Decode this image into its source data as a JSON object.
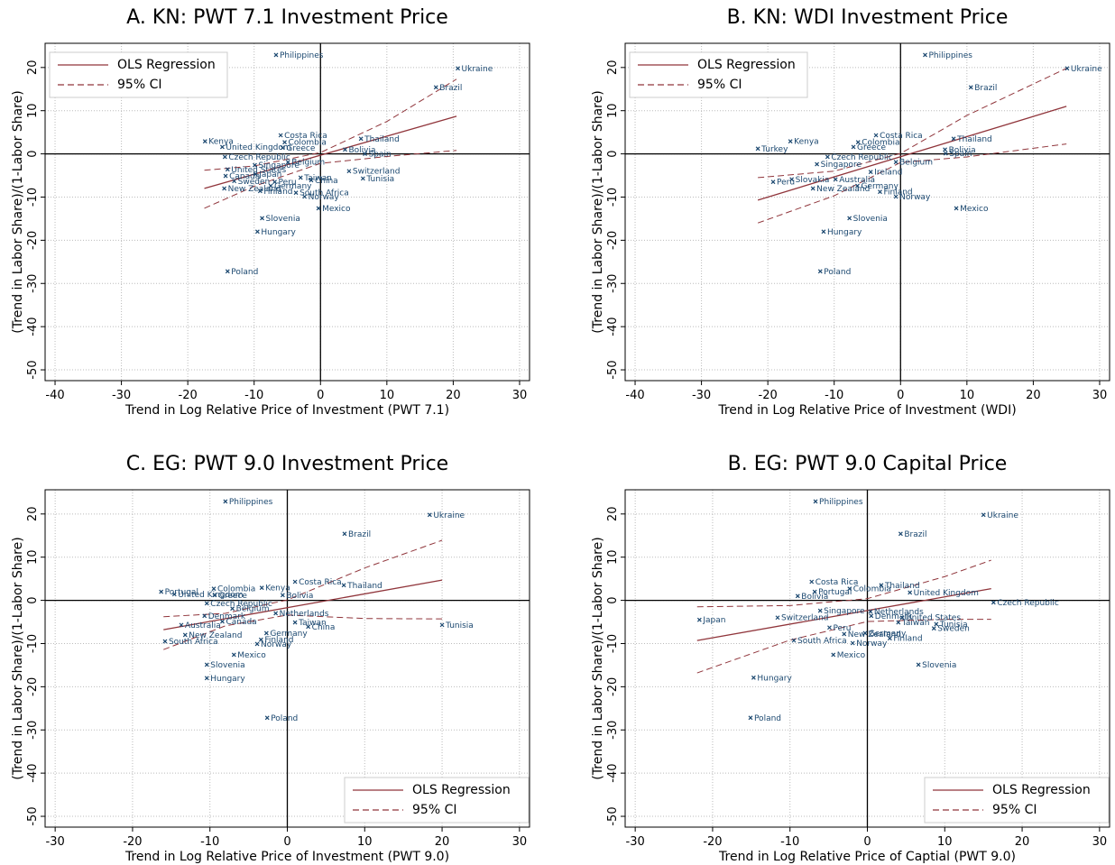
{
  "chart_data": [
    {
      "type": "scatter",
      "title": "A. KN: PWT 7.1 Investment Price",
      "x_label": "Trend in Log Relative Price of Investment (PWT 7.1)",
      "y_label": "(Trend in Labor Share)/(1-Labor Share)",
      "xlim": [
        -41.5,
        31.5
      ],
      "ylim": [
        -52.5,
        25.6
      ],
      "xticks": [
        -40,
        -30,
        -20,
        -10,
        0,
        10,
        20,
        30
      ],
      "yticks": [
        -50,
        -40,
        -30,
        -20,
        -10,
        0,
        10,
        20
      ],
      "grid": true,
      "legend": "top-left",
      "points": {
        "color": "#1a476f",
        "labels": [
          "Philippines",
          "Ukraine",
          "Brazil",
          "Costa Rica",
          "Colombia",
          "Kenya",
          "United Kingdom",
          "Greece",
          "Thailand",
          "Bolivia",
          "Spain",
          "Czech Republic",
          "Belgium",
          "Singapore",
          "United States",
          "Canada",
          "Japan",
          "Switzerland",
          "Tunisia",
          "Taiwan",
          "China",
          "Sweden",
          "Peru",
          "Germany",
          "New Zealand",
          "Finland",
          "South Africa",
          "Norway",
          "Mexico",
          "Slovenia",
          "Hungary",
          "Poland"
        ],
        "x": [
          -6.7,
          20.7,
          17.4,
          -6.0,
          -5.4,
          -17.4,
          -14.8,
          -5.7,
          6.1,
          3.7,
          6.7,
          -14.4,
          -4.9,
          -9.9,
          -14.0,
          -14.3,
          -9.8,
          4.3,
          6.4,
          -3.0,
          -1.4,
          -13.0,
          -6.9,
          -7.5,
          -14.5,
          -9.1,
          -3.7,
          -2.4,
          -0.3,
          -8.8,
          -9.5,
          -14.0
        ],
        "y": [
          22.9,
          19.8,
          15.4,
          4.3,
          2.7,
          2.9,
          1.6,
          1.4,
          3.5,
          1.0,
          0,
          -0.7,
          -1.9,
          -2.6,
          -3.6,
          -5.1,
          -4.7,
          -4.0,
          -5.7,
          -5.5,
          -6.1,
          -6.3,
          -6.5,
          -7.4,
          -8.0,
          -8.6,
          -9.0,
          -9.9,
          -12.6,
          -14.9,
          -18.0,
          -27.2
        ]
      },
      "series": [
        {
          "name": "OLS Regression",
          "color": "#90353b",
          "x": [
            -17.5,
            20.5
          ],
          "values": [
            -8,
            8.7
          ]
        },
        {
          "name": "95% CI",
          "color": "#90353b",
          "x": [
            -17.5,
            -10,
            0,
            10,
            20.5
          ],
          "upper": [
            -3.8,
            -2.8,
            0.3,
            7.5,
            17.3
          ],
          "lower": [
            -12.6,
            -7.5,
            -2.2,
            -0.6,
            0.8
          ]
        }
      ]
    },
    {
      "type": "scatter",
      "title": "B. KN: WDI Investment Price",
      "x_label": "Trend in Log Relative Price of Investment (WDI)",
      "y_label": "(Trend in Labor Share)/(1-Labor Share)",
      "xlim": [
        -41.5,
        31.5
      ],
      "ylim": [
        -52.5,
        25.6
      ],
      "xticks": [
        -40,
        -30,
        -20,
        -10,
        0,
        10,
        20,
        30
      ],
      "yticks": [
        -50,
        -40,
        -30,
        -20,
        -10,
        0,
        10,
        20
      ],
      "grid": true,
      "legend": "top-left",
      "points": {
        "color": "#1a476f",
        "labels": [
          "Philippines",
          "Ukraine",
          "Brazil",
          "Turkey",
          "Kenya",
          "Costa Rica",
          "Colombia",
          "Greece",
          "Thailand",
          "Bolivia",
          "Spain",
          "Czech Republic",
          "Belgium",
          "Singapore",
          "Peru",
          "Slovakia",
          "Australia",
          "Ireland",
          "Germany",
          "New Zealand",
          "Finland",
          "Norway",
          "Mexico",
          "Slovenia",
          "Hungary",
          "Poland"
        ],
        "x": [
          3.7,
          25.1,
          10.6,
          -21.5,
          -16.6,
          -3.7,
          -6.4,
          -7.1,
          8.0,
          6.7,
          6.8,
          -11.0,
          -0.7,
          -12.6,
          -19.2,
          -16.4,
          -9.8,
          -4.5,
          -6.5,
          -13.2,
          -3.1,
          -0.7,
          8.4,
          -7.7,
          -11.6,
          -12.1
        ],
        "y": [
          22.9,
          19.8,
          15.4,
          1.2,
          2.9,
          4.3,
          2.7,
          1.6,
          3.5,
          1.0,
          0.1,
          -0.7,
          -1.9,
          -2.4,
          -6.5,
          -5.9,
          -5.9,
          -4.2,
          -7.4,
          -8.0,
          -8.8,
          -9.9,
          -12.6,
          -14.9,
          -18.0,
          -27.2
        ]
      },
      "series": [
        {
          "name": "OLS Regression",
          "color": "#90353b",
          "x": [
            -21.5,
            25
          ],
          "values": [
            -10.7,
            11.0
          ]
        },
        {
          "name": "95% CI",
          "color": "#90353b",
          "x": [
            -21.5,
            -10,
            0,
            10,
            25
          ],
          "upper": [
            -5.5,
            -4,
            0.1,
            8.9,
            19.8
          ],
          "lower": [
            -16,
            -9.7,
            -2,
            -0.7,
            2.3
          ]
        }
      ]
    },
    {
      "type": "scatter",
      "title": "C. EG: PWT 9.0 Investment Price",
      "x_label": "Trend in Log Relative Price of Investment (PWT 9.0)",
      "y_label": "(Trend in Labor Share)/(1-Labor Share)",
      "xlim": [
        -31.3,
        31.3
      ],
      "ylim": [
        -52.5,
        25.6
      ],
      "xticks": [
        -30,
        -20,
        -10,
        0,
        10,
        20,
        30
      ],
      "yticks": [
        -50,
        -40,
        -30,
        -20,
        -10,
        0,
        10,
        20
      ],
      "grid": true,
      "legend": "bottom-right",
      "points": {
        "color": "#1a476f",
        "labels": [
          "Philippines",
          "Ukraine",
          "Brazil",
          "Costa Rica",
          "Kenya",
          "Thailand",
          "Bolivia",
          "Portugal",
          "United Kingdom",
          "Colombia",
          "Greece",
          "Czech Republic",
          "Belgium",
          "Netherlands",
          "Denmark",
          "Australia",
          "Canada",
          "Taiwan",
          "China",
          "Tunisia",
          "Germany",
          "New Zealand",
          "South Africa",
          "Finland",
          "Norway",
          "Mexico",
          "Slovenia",
          "Hungary",
          "Poland"
        ],
        "x": [
          -8.0,
          18.4,
          7.4,
          1.0,
          -3.3,
          7.3,
          -0.6,
          -16.3,
          -14.6,
          -9.5,
          -9.4,
          -10.4,
          -7.1,
          -1.5,
          -10.7,
          -13.7,
          -8.4,
          1.0,
          2.7,
          20.0,
          -2.7,
          -13.2,
          -15.8,
          -3.4,
          -3.9,
          -6.9,
          -10.4,
          -10.4,
          -2.6
        ],
        "y": [
          22.9,
          19.8,
          15.4,
          4.3,
          2.9,
          3.5,
          1.2,
          2.0,
          1.4,
          2.7,
          1.2,
          -0.7,
          -1.9,
          -3.0,
          -3.6,
          -5.7,
          -4.9,
          -5.1,
          -6.1,
          -5.7,
          -7.6,
          -8.0,
          -9.5,
          -9.1,
          -10.1,
          -12.6,
          -14.9,
          -18.0,
          -27.2
        ]
      },
      "series": [
        {
          "name": "OLS Regression",
          "color": "#90353b",
          "x": [
            -16,
            20
          ],
          "values": [
            -6.8,
            4.7
          ]
        },
        {
          "name": "95% CI",
          "color": "#90353b",
          "x": [
            -16,
            -8,
            0,
            10,
            20
          ],
          "upper": [
            -3.8,
            -3,
            0.1,
            7.5,
            13.9
          ],
          "lower": [
            -11.4,
            -5.9,
            -3.4,
            -4.2,
            -4.3
          ]
        }
      ]
    },
    {
      "type": "scatter",
      "title": "B. EG: PWT 9.0 Capital Price",
      "x_label": "Trend in Log Relative Price of Captial (PWT 9.0)",
      "y_label": "(Trend in Labor Share)/(1-Labor Share)",
      "xlim": [
        -31.3,
        31.3
      ],
      "ylim": [
        -52.5,
        25.6
      ],
      "xticks": [
        -30,
        -20,
        -10,
        0,
        10,
        20,
        30
      ],
      "yticks": [
        -50,
        -40,
        -30,
        -20,
        -10,
        0,
        10,
        20
      ],
      "grid": true,
      "legend": "bottom-right",
      "points": {
        "color": "#1a476f",
        "labels": [
          "Philippines",
          "Ukraine",
          "Brazil",
          "Costa Rica",
          "Thailand",
          "United Kingdom",
          "Czech Republic",
          "Japan",
          "Switzerland",
          "Portugal",
          "Colombia",
          "Bolivia",
          "Singapore",
          "Netherlands",
          "Denmark",
          "United States",
          "Taiwan",
          "Tunisia",
          "Sweden",
          "Peru",
          "New Zealand",
          "Germany",
          "Finland",
          "South Africa",
          "Norway",
          "Mexico",
          "Slovenia",
          "Hungary",
          "Poland"
        ],
        "x": [
          -6.7,
          15.0,
          4.3,
          -7.2,
          1.8,
          5.5,
          16.3,
          -21.7,
          -11.6,
          -6.8,
          -2.3,
          -9.0,
          -6.1,
          0.4,
          0.5,
          4.5,
          4.0,
          8.9,
          8.6,
          -4.9,
          -3.0,
          -0.3,
          2.9,
          -9.5,
          -1.9,
          -4.4,
          6.6,
          -14.7,
          -15.1
        ],
        "y": [
          22.9,
          19.8,
          15.4,
          4.3,
          3.5,
          1.8,
          -0.5,
          -4.5,
          -4.0,
          2.0,
          2.7,
          1.0,
          -2.4,
          -2.6,
          -3.6,
          -4.0,
          -5.1,
          -5.5,
          -6.5,
          -6.3,
          -7.8,
          -7.6,
          -8.8,
          -9.3,
          -9.9,
          -12.6,
          -14.9,
          -17.9,
          -27.2
        ]
      },
      "series": [
        {
          "name": "OLS Regression",
          "color": "#90353b",
          "x": [
            -22,
            16
          ],
          "values": [
            -9.3,
            2.7
          ]
        },
        {
          "name": "95% CI",
          "color": "#90353b",
          "x": [
            -22,
            -10,
            0,
            10,
            16
          ],
          "upper": [
            -1.5,
            -1.2,
            0.4,
            5.5,
            9.3
          ],
          "lower": [
            -16.8,
            -9.2,
            -4.9,
            -4.4,
            -4.4
          ]
        }
      ]
    }
  ]
}
